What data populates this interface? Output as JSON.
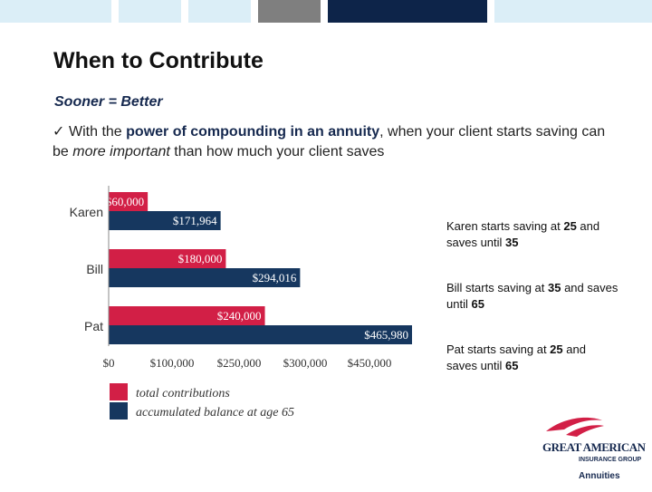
{
  "colors": {
    "red": "#d21f46",
    "navy": "#16375f",
    "top_light": "#dbeef7",
    "top_gray": "#7f7f7f",
    "top_navy": "#0d2449"
  },
  "slide": {
    "title": "When to Contribute",
    "subtitle": "Sooner = Better",
    "bullet_check": "✓",
    "bullet_pre": "With the ",
    "bullet_highlight": "power of compounding in an annuity",
    "bullet_mid": ", when your client starts saving can be ",
    "bullet_em": "more important",
    "bullet_post": " than how much your client saves"
  },
  "notes": [
    {
      "pre": "Karen starts saving at ",
      "age1": "25",
      "mid": " and saves until ",
      "age2": "35"
    },
    {
      "pre": "Bill starts saving at ",
      "age1": "35",
      "mid": " and saves until ",
      "age2": "65"
    },
    {
      "pre": "Pat starts saving at ",
      "age1": "25",
      "mid": " and saves until ",
      "age2": "65"
    }
  ],
  "logo": {
    "line1": "GREAT AMERICAN",
    "line2": "INSURANCE GROUP",
    "line3": "Annuities"
  },
  "chart_data": {
    "type": "bar",
    "orientation": "horizontal",
    "categories": [
      "Karen",
      "Bill",
      "Pat"
    ],
    "series": [
      {
        "name": "total contributions",
        "color": "#d21f46",
        "values": [
          60000,
          180000,
          240000
        ],
        "labels": [
          "$60,000",
          "$180,000",
          "$240,000"
        ]
      },
      {
        "name": "accumulated balance at age 65",
        "color": "#16375f",
        "values": [
          171964,
          294016,
          465980
        ],
        "labels": [
          "$171,964",
          "$294,016",
          "$465,980"
        ]
      }
    ],
    "x_ticks": [
      "$0",
      "$100,000",
      "$250,000",
      "$300,000",
      "$450,000"
    ],
    "xlim": [
      0,
      500000
    ],
    "grid": false,
    "legend_position": "bottom-left"
  }
}
